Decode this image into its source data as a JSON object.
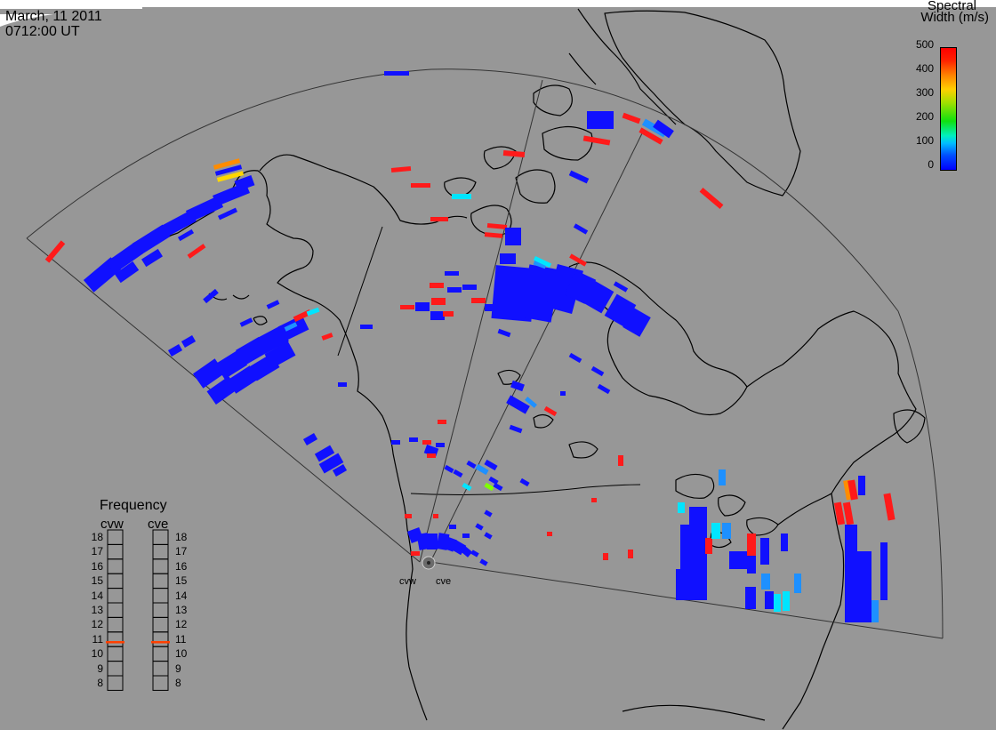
{
  "header": {
    "date": "March, 11 2011",
    "time": "0712:00 UT"
  },
  "colorbar": {
    "title_line1": "Spectral",
    "title_line2": "Width (m/s)",
    "ticks": [
      "500",
      "400",
      "300",
      "200",
      "100",
      "0"
    ]
  },
  "frequency_panel": {
    "title": "Frequency",
    "radars": [
      "cvw",
      "cve"
    ],
    "ticks": [
      "18",
      "17",
      "16",
      "15",
      "14",
      "13",
      "12",
      "11",
      "10",
      "9",
      "8"
    ],
    "cvw_value": 10.8,
    "cve_value": 10.8,
    "indicator_color": "#ff4000"
  },
  "stations": {
    "west_label": "cvw",
    "east_label": "cve"
  },
  "colors": {
    "background": "#979797",
    "blue": "#1010ff",
    "red": "#ff1a1a",
    "cyan": "#00e5ff",
    "lightblue": "#1e90ff",
    "yellow": "#ffd700",
    "orange": "#ff8c00",
    "green": "#7fff00"
  }
}
